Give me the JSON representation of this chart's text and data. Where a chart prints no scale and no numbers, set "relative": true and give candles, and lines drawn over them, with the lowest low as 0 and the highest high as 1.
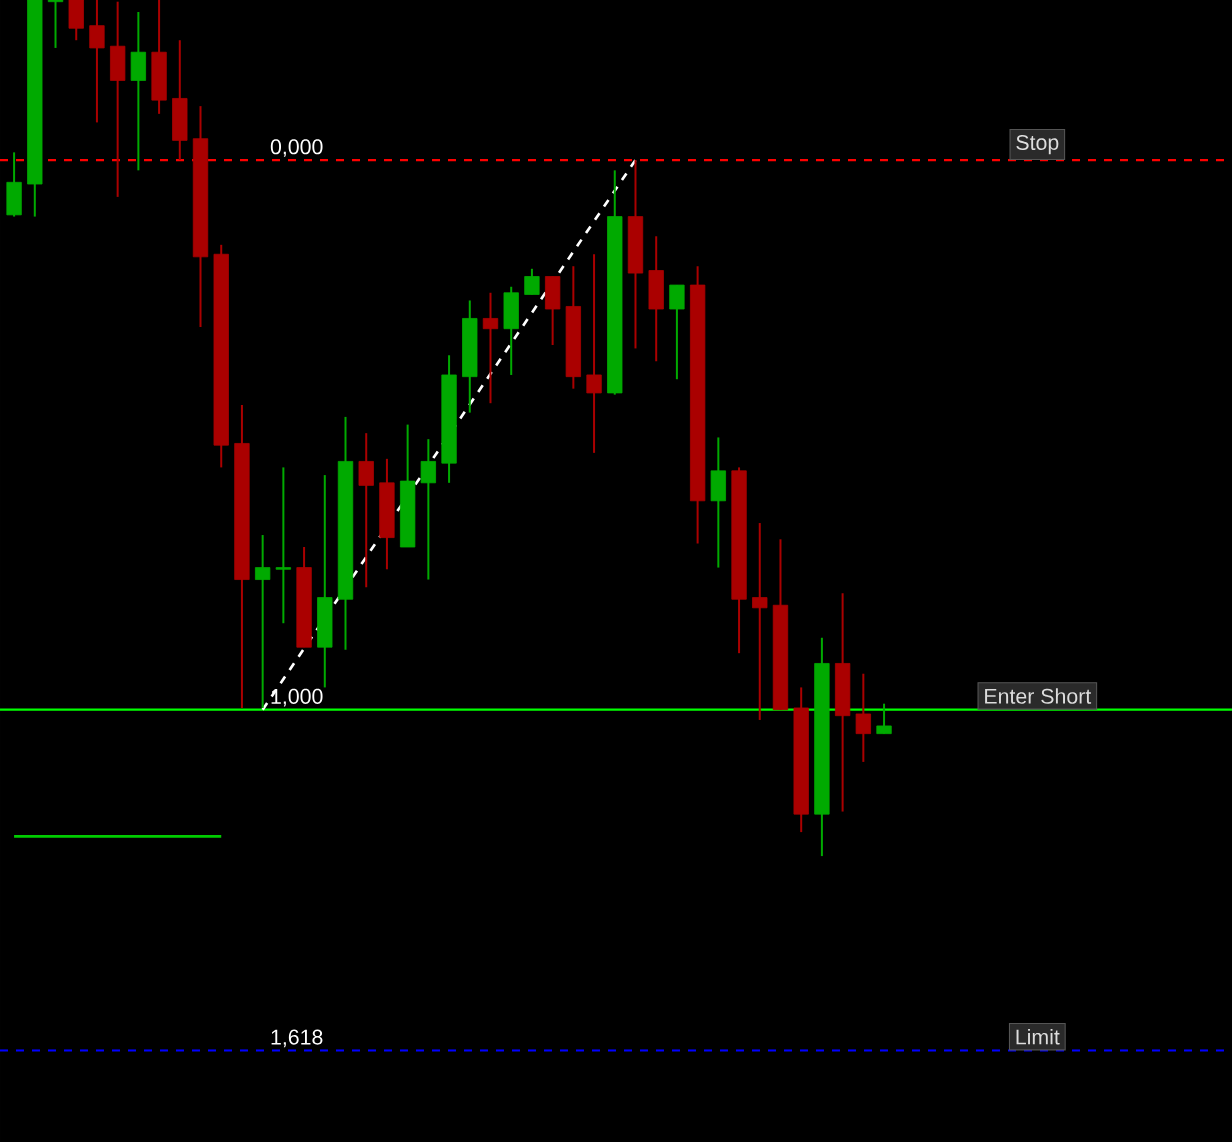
{
  "chart_data": {
    "type": "candlestick",
    "relative": true,
    "categories": [
      null,
      null,
      null,
      null,
      null,
      null,
      null,
      null,
      null,
      null,
      null,
      null,
      null,
      null,
      null,
      null,
      null,
      null,
      null,
      null,
      null,
      null,
      null,
      null,
      null,
      null,
      null,
      null,
      null,
      null,
      null,
      null,
      null,
      null,
      null,
      null,
      null,
      null,
      null,
      null,
      null,
      null,
      null
    ],
    "ohlc": [
      [
        0.749,
        0.822,
        0.747,
        0.787
      ],
      [
        0.785,
        1.0,
        0.747,
        1.0
      ],
      [
        0.998,
        1.0,
        0.944,
        1.0
      ],
      [
        1.0,
        1.0,
        0.953,
        0.967
      ],
      [
        0.97,
        1.0,
        0.857,
        0.944
      ],
      [
        0.946,
        0.998,
        0.77,
        0.906
      ],
      [
        0.906,
        0.986,
        0.801,
        0.939
      ],
      [
        0.939,
        1.0,
        0.867,
        0.883
      ],
      [
        0.885,
        0.953,
        0.813,
        0.836
      ],
      [
        0.838,
        0.876,
        0.618,
        0.7
      ],
      [
        0.703,
        0.714,
        0.454,
        0.48
      ],
      [
        0.482,
        0.527,
        0.173,
        0.323
      ],
      [
        0.323,
        0.375,
        0.173,
        0.337
      ],
      [
        0.335,
        0.454,
        0.272,
        0.337
      ],
      [
        0.337,
        0.361,
        0.244,
        0.244
      ],
      [
        0.244,
        0.445,
        0.197,
        0.302
      ],
      [
        0.3,
        0.513,
        0.241,
        0.461
      ],
      [
        0.461,
        0.494,
        0.314,
        0.433
      ],
      [
        0.436,
        0.464,
        0.335,
        0.372
      ],
      [
        0.361,
        0.504,
        0.361,
        0.438
      ],
      [
        0.436,
        0.487,
        0.323,
        0.461
      ],
      [
        0.459,
        0.585,
        0.436,
        0.562
      ],
      [
        0.56,
        0.649,
        0.518,
        0.628
      ],
      [
        0.628,
        0.658,
        0.529,
        0.616
      ],
      [
        0.616,
        0.665,
        0.562,
        0.658
      ],
      [
        0.656,
        0.686,
        0.656,
        0.677
      ],
      [
        0.677,
        0.677,
        0.597,
        0.639
      ],
      [
        0.642,
        0.689,
        0.546,
        0.56
      ],
      [
        0.562,
        0.703,
        0.471,
        0.541
      ],
      [
        0.541,
        0.801,
        0.539,
        0.747
      ],
      [
        0.747,
        0.813,
        0.593,
        0.681
      ],
      [
        0.684,
        0.724,
        0.578,
        0.639
      ],
      [
        0.639,
        0.667,
        0.557,
        0.667
      ],
      [
        0.667,
        0.689,
        0.365,
        0.415
      ],
      [
        0.415,
        0.489,
        0.337,
        0.45
      ],
      [
        0.45,
        0.454,
        0.237,
        0.3
      ],
      [
        0.302,
        0.389,
        0.159,
        0.29
      ],
      [
        0.293,
        0.37,
        0.171,
        0.171
      ],
      [
        0.173,
        0.197,
        0.028,
        0.049
      ],
      [
        0.049,
        0.255,
        0.0,
        0.225
      ],
      [
        0.225,
        0.307,
        0.052,
        0.164
      ],
      [
        0.166,
        0.213,
        0.11,
        0.143
      ],
      [
        0.143,
        0.178,
        0.143,
        0.152
      ]
    ],
    "colors": [
      "#00aa00",
      "#00aa00",
      "#00aa00",
      "#aa0000",
      "#aa0000",
      "#aa0000",
      "#00aa00",
      "#aa0000",
      "#aa0000",
      "#aa0000",
      "#aa0000",
      "#aa0000",
      "#00aa00",
      "#00aa00",
      "#aa0000",
      "#00aa00",
      "#00aa00",
      "#aa0000",
      "#aa0000",
      "#00aa00",
      "#00aa00",
      "#00aa00",
      "#00aa00",
      "#aa0000",
      "#00aa00",
      "#00aa00",
      "#aa0000",
      "#aa0000",
      "#aa0000",
      "#00aa00",
      "#aa0000",
      "#aa0000",
      "#00aa00",
      "#aa0000",
      "#00aa00",
      "#aa0000",
      "#aa0000",
      "#aa0000",
      "#aa0000",
      "#00aa00",
      "#aa0000",
      "#aa0000",
      "#00aa00"
    ],
    "series": [
      {
        "type": "line",
        "values": [
          null,
          null,
          null,
          null,
          null,
          null,
          null,
          null,
          null,
          null,
          null,
          null,
          0.171,
          null,
          null,
          null,
          null,
          null,
          null,
          null,
          null,
          null,
          null,
          null,
          null,
          null,
          null,
          null,
          null,
          null,
          0.813,
          null,
          null,
          null,
          null,
          null,
          null,
          null,
          null,
          null,
          null,
          null,
          null
        ],
        "color": "#ffffff",
        "line_style": "dashed"
      },
      {
        "type": "line",
        "values": [
          0.023,
          0.023,
          0.023,
          0.023,
          0.023,
          0.023,
          0.023,
          0.023,
          0.023,
          0.023,
          0.023,
          null,
          null,
          null,
          null,
          null,
          null,
          null,
          null,
          null,
          null,
          null,
          null,
          null,
          null,
          null,
          null,
          null,
          null,
          null,
          null,
          null,
          null,
          null,
          null,
          null,
          null,
          null,
          null,
          null,
          null,
          null,
          null
        ],
        "color": "#00cc00",
        "line_style": "solid"
      }
    ],
    "ref_lines": [
      {
        "axis": "y",
        "value": 0.813,
        "label": "Stop",
        "color": "#ff0000",
        "line_style": "dashed"
      },
      {
        "axis": "y",
        "value": 0.171,
        "label": "Enter Short",
        "color": "#00ff00",
        "line_style": "solid"
      },
      {
        "axis": "y",
        "value": -0.227,
        "label": "Limit",
        "color": "#0000ff",
        "line_style": "dashed"
      }
    ],
    "annotations": [
      {
        "text": "0,000",
        "y": 0.813
      },
      {
        "text": "1,000",
        "y": 0.171
      },
      {
        "text": "1,618",
        "y": -0.227
      }
    ]
  }
}
